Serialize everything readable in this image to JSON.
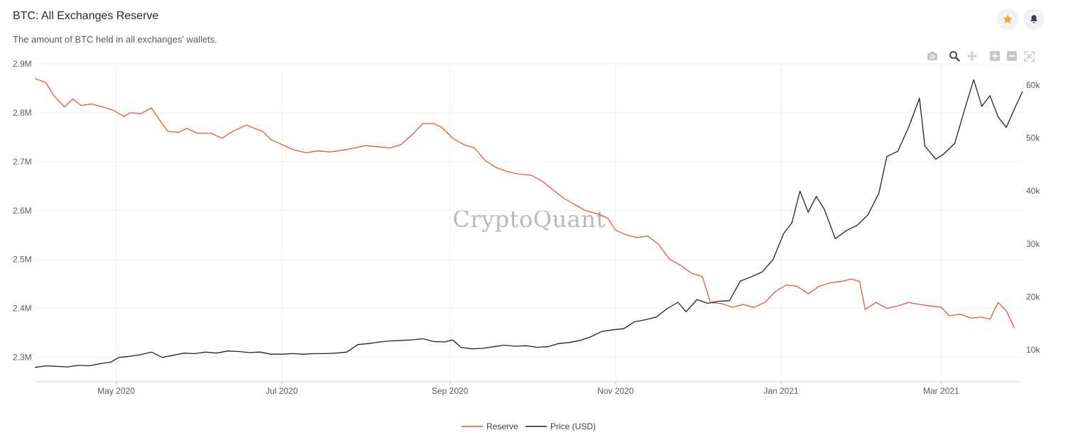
{
  "header": {
    "title": "BTC: All Exchanges Reserve",
    "subtitle": "The amount of BTC held in all exchanges' wallets.",
    "favorite_icon": "star-icon",
    "alert_icon": "bell-icon",
    "favorite_color": "#f5a623"
  },
  "toolbar": {
    "icons": [
      "camera-icon",
      "zoom-icon",
      "pan-icon",
      "zoom-in-icon",
      "zoom-out-icon",
      "autoscale-icon"
    ]
  },
  "watermark": "CryptoQuant",
  "chart_data": {
    "type": "line",
    "x_range": [
      "2020-04-01",
      "2021-03-31"
    ],
    "x_ticks": [
      {
        "date": "2020-05-01",
        "label": "May 2020"
      },
      {
        "date": "2020-07-01",
        "label": "Jul 2020"
      },
      {
        "date": "2020-09-01",
        "label": "Sep 2020"
      },
      {
        "date": "2020-11-01",
        "label": "Nov 2020"
      },
      {
        "date": "2021-01-01",
        "label": "Jan 2021"
      },
      {
        "date": "2021-03-01",
        "label": "Mar 2021"
      }
    ],
    "y_left": {
      "range": [
        2250000,
        2900000
      ],
      "ticks": [
        {
          "value": 2300000,
          "label": "2.3M"
        },
        {
          "value": 2400000,
          "label": "2.4M"
        },
        {
          "value": 2500000,
          "label": "2.5M"
        },
        {
          "value": 2600000,
          "label": "2.6M"
        },
        {
          "value": 2700000,
          "label": "2.7M"
        },
        {
          "value": 2800000,
          "label": "2.8M"
        },
        {
          "value": 2900000,
          "label": "2.9M"
        }
      ]
    },
    "y_right": {
      "range": [
        4000,
        64000
      ],
      "ticks": [
        {
          "value": 10000,
          "label": "10k"
        },
        {
          "value": 20000,
          "label": "20k"
        },
        {
          "value": 30000,
          "label": "30k"
        },
        {
          "value": 40000,
          "label": "40k"
        },
        {
          "value": 50000,
          "label": "50k"
        },
        {
          "value": 60000,
          "label": "60k"
        }
      ]
    },
    "grid": true,
    "legend_position": "bottom-center",
    "series": [
      {
        "name": "Reserve",
        "axis": "left",
        "color": "#e0573c",
        "points": [
          [
            "2020-04-01",
            2870000
          ],
          [
            "2020-04-05",
            2862000
          ],
          [
            "2020-04-08",
            2835000
          ],
          [
            "2020-04-12",
            2812000
          ],
          [
            "2020-04-15",
            2828000
          ],
          [
            "2020-04-18",
            2815000
          ],
          [
            "2020-04-22",
            2818000
          ],
          [
            "2020-04-26",
            2812000
          ],
          [
            "2020-04-30",
            2805000
          ],
          [
            "2020-05-04",
            2792000
          ],
          [
            "2020-05-06",
            2800000
          ],
          [
            "2020-05-10",
            2798000
          ],
          [
            "2020-05-14",
            2810000
          ],
          [
            "2020-05-17",
            2785000
          ],
          [
            "2020-05-20",
            2762000
          ],
          [
            "2020-05-24",
            2760000
          ],
          [
            "2020-05-27",
            2768000
          ],
          [
            "2020-05-31",
            2758000
          ],
          [
            "2020-06-05",
            2758000
          ],
          [
            "2020-06-09",
            2748000
          ],
          [
            "2020-06-13",
            2762000
          ],
          [
            "2020-06-18",
            2775000
          ],
          [
            "2020-06-21",
            2768000
          ],
          [
            "2020-06-24",
            2762000
          ],
          [
            "2020-06-27",
            2745000
          ],
          [
            "2020-06-30",
            2738000
          ],
          [
            "2020-07-05",
            2725000
          ],
          [
            "2020-07-10",
            2718000
          ],
          [
            "2020-07-14",
            2722000
          ],
          [
            "2020-07-19",
            2720000
          ],
          [
            "2020-07-24",
            2724000
          ],
          [
            "2020-07-28",
            2728000
          ],
          [
            "2020-08-01",
            2733000
          ],
          [
            "2020-08-06",
            2730000
          ],
          [
            "2020-08-10",
            2728000
          ],
          [
            "2020-08-14",
            2735000
          ],
          [
            "2020-08-18",
            2755000
          ],
          [
            "2020-08-22",
            2778000
          ],
          [
            "2020-08-26",
            2778000
          ],
          [
            "2020-08-29",
            2770000
          ],
          [
            "2020-09-02",
            2748000
          ],
          [
            "2020-09-06",
            2735000
          ],
          [
            "2020-09-10",
            2728000
          ],
          [
            "2020-09-14",
            2702000
          ],
          [
            "2020-09-18",
            2688000
          ],
          [
            "2020-09-22",
            2680000
          ],
          [
            "2020-09-26",
            2675000
          ],
          [
            "2020-10-01",
            2672000
          ],
          [
            "2020-10-05",
            2660000
          ],
          [
            "2020-10-09",
            2642000
          ],
          [
            "2020-10-13",
            2625000
          ],
          [
            "2020-10-17",
            2612000
          ],
          [
            "2020-10-21",
            2600000
          ],
          [
            "2020-10-26",
            2592000
          ],
          [
            "2020-10-29",
            2585000
          ],
          [
            "2020-11-01",
            2560000
          ],
          [
            "2020-11-05",
            2550000
          ],
          [
            "2020-11-09",
            2545000
          ],
          [
            "2020-11-13",
            2548000
          ],
          [
            "2020-11-17",
            2530000
          ],
          [
            "2020-11-21",
            2500000
          ],
          [
            "2020-11-25",
            2488000
          ],
          [
            "2020-11-29",
            2472000
          ],
          [
            "2020-12-03",
            2465000
          ],
          [
            "2020-12-06",
            2412000
          ],
          [
            "2020-12-10",
            2410000
          ],
          [
            "2020-12-14",
            2402000
          ],
          [
            "2020-12-18",
            2408000
          ],
          [
            "2020-12-22",
            2402000
          ],
          [
            "2020-12-26",
            2412000
          ],
          [
            "2020-12-30",
            2435000
          ],
          [
            "2021-01-03",
            2448000
          ],
          [
            "2021-01-07",
            2445000
          ],
          [
            "2021-01-11",
            2430000
          ],
          [
            "2021-01-15",
            2445000
          ],
          [
            "2021-01-19",
            2452000
          ],
          [
            "2021-01-23",
            2455000
          ],
          [
            "2021-01-27",
            2460000
          ],
          [
            "2021-01-30",
            2455000
          ],
          [
            "2021-02-01",
            2398000
          ],
          [
            "2021-02-05",
            2412000
          ],
          [
            "2021-02-09",
            2400000
          ],
          [
            "2021-02-13",
            2405000
          ],
          [
            "2021-02-17",
            2412000
          ],
          [
            "2021-02-21",
            2408000
          ],
          [
            "2021-02-25",
            2405000
          ],
          [
            "2021-03-01",
            2402000
          ],
          [
            "2021-03-04",
            2385000
          ],
          [
            "2021-03-08",
            2388000
          ],
          [
            "2021-03-12",
            2380000
          ],
          [
            "2021-03-16",
            2382000
          ],
          [
            "2021-03-19",
            2378000
          ],
          [
            "2021-03-22",
            2412000
          ],
          [
            "2021-03-25",
            2395000
          ],
          [
            "2021-03-28",
            2360000
          ]
        ]
      },
      {
        "name": "Price (USD)",
        "axis": "right",
        "color": "#222222",
        "points": [
          [
            "2020-04-01",
            6700
          ],
          [
            "2020-04-05",
            7000
          ],
          [
            "2020-04-09",
            6900
          ],
          [
            "2020-04-13",
            6800
          ],
          [
            "2020-04-17",
            7100
          ],
          [
            "2020-04-21",
            7000
          ],
          [
            "2020-04-25",
            7400
          ],
          [
            "2020-04-29",
            7700
          ],
          [
            "2020-05-02",
            8600
          ],
          [
            "2020-05-06",
            8800
          ],
          [
            "2020-05-10",
            9100
          ],
          [
            "2020-05-14",
            9600
          ],
          [
            "2020-05-18",
            8600
          ],
          [
            "2020-05-22",
            9000
          ],
          [
            "2020-05-26",
            9400
          ],
          [
            "2020-05-30",
            9300
          ],
          [
            "2020-06-03",
            9600
          ],
          [
            "2020-06-07",
            9400
          ],
          [
            "2020-06-11",
            9800
          ],
          [
            "2020-06-15",
            9700
          ],
          [
            "2020-06-19",
            9500
          ],
          [
            "2020-06-23",
            9600
          ],
          [
            "2020-06-27",
            9200
          ],
          [
            "2020-07-01",
            9200
          ],
          [
            "2020-07-05",
            9300
          ],
          [
            "2020-07-09",
            9200
          ],
          [
            "2020-07-13",
            9300
          ],
          [
            "2020-07-17",
            9300
          ],
          [
            "2020-07-21",
            9400
          ],
          [
            "2020-07-25",
            9600
          ],
          [
            "2020-07-29",
            11000
          ],
          [
            "2020-08-02",
            11200
          ],
          [
            "2020-08-06",
            11500
          ],
          [
            "2020-08-10",
            11700
          ],
          [
            "2020-08-14",
            11800
          ],
          [
            "2020-08-18",
            11900
          ],
          [
            "2020-08-22",
            12100
          ],
          [
            "2020-08-26",
            11600
          ],
          [
            "2020-08-30",
            11500
          ],
          [
            "2020-09-02",
            11900
          ],
          [
            "2020-09-05",
            10500
          ],
          [
            "2020-09-09",
            10200
          ],
          [
            "2020-09-13",
            10300
          ],
          [
            "2020-09-17",
            10600
          ],
          [
            "2020-09-21",
            10900
          ],
          [
            "2020-09-25",
            10700
          ],
          [
            "2020-09-29",
            10800
          ],
          [
            "2020-10-03",
            10500
          ],
          [
            "2020-10-07",
            10600
          ],
          [
            "2020-10-11",
            11200
          ],
          [
            "2020-10-15",
            11400
          ],
          [
            "2020-10-19",
            11800
          ],
          [
            "2020-10-23",
            12500
          ],
          [
            "2020-10-27",
            13500
          ],
          [
            "2020-10-31",
            13800
          ],
          [
            "2020-11-04",
            14000
          ],
          [
            "2020-11-08",
            15300
          ],
          [
            "2020-11-12",
            15700
          ],
          [
            "2020-11-16",
            16200
          ],
          [
            "2020-11-20",
            17800
          ],
          [
            "2020-11-24",
            19000
          ],
          [
            "2020-11-27",
            17200
          ],
          [
            "2020-12-01",
            19500
          ],
          [
            "2020-12-05",
            18800
          ],
          [
            "2020-12-09",
            19200
          ],
          [
            "2020-12-13",
            19300
          ],
          [
            "2020-12-17",
            23000
          ],
          [
            "2020-12-21",
            23800
          ],
          [
            "2020-12-25",
            24700
          ],
          [
            "2020-12-29",
            27000
          ],
          [
            "2021-01-02",
            32000
          ],
          [
            "2021-01-05",
            34000
          ],
          [
            "2021-01-08",
            40000
          ],
          [
            "2021-01-11",
            36000
          ],
          [
            "2021-01-14",
            39000
          ],
          [
            "2021-01-17",
            36500
          ],
          [
            "2021-01-21",
            31000
          ],
          [
            "2021-01-25",
            32500
          ],
          [
            "2021-01-29",
            33500
          ],
          [
            "2021-02-02",
            35500
          ],
          [
            "2021-02-06",
            39500
          ],
          [
            "2021-02-09",
            46500
          ],
          [
            "2021-02-13",
            47500
          ],
          [
            "2021-02-17",
            52000
          ],
          [
            "2021-02-21",
            57500
          ],
          [
            "2021-02-23",
            48500
          ],
          [
            "2021-02-27",
            46000
          ],
          [
            "2021-03-02",
            47000
          ],
          [
            "2021-03-06",
            49000
          ],
          [
            "2021-03-10",
            56000
          ],
          [
            "2021-03-13",
            61000
          ],
          [
            "2021-03-16",
            56000
          ],
          [
            "2021-03-19",
            58000
          ],
          [
            "2021-03-22",
            54000
          ],
          [
            "2021-03-25",
            52000
          ],
          [
            "2021-03-28",
            55500
          ],
          [
            "2021-03-31",
            58800
          ]
        ]
      }
    ]
  }
}
